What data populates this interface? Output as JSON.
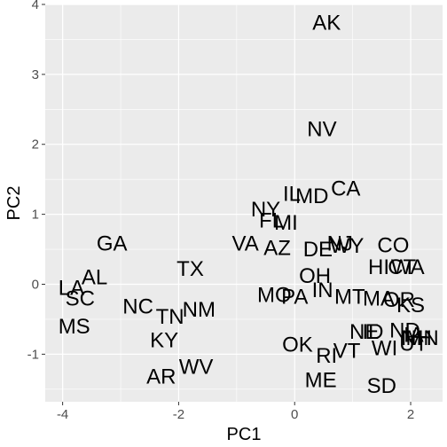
{
  "chart_data": {
    "type": "scatter",
    "title": "",
    "xlabel": "PC1",
    "ylabel": "PC2",
    "xlim": [
      -4.3,
      2.55
    ],
    "ylim": [
      -1.68,
      4.0
    ],
    "x_ticks": [
      -4,
      -2,
      0,
      2
    ],
    "x_tick_labels": [
      "-4",
      "-2",
      "0",
      "2"
    ],
    "y_ticks": [
      -1,
      0,
      1,
      2,
      3,
      4
    ],
    "y_tick_labels": [
      "-1",
      "0",
      "1",
      "2",
      "3",
      "4"
    ],
    "grid": true,
    "legend": "none",
    "colors": {
      "panel": "#ebebeb",
      "grid": "#ffffff",
      "text": "#000000",
      "tick_text": "#4d4d4d"
    },
    "points": [
      {
        "label": "AK",
        "x": 0.55,
        "y": 3.74
      },
      {
        "label": "NV",
        "x": 0.47,
        "y": 2.22
      },
      {
        "label": "CA",
        "x": 0.88,
        "y": 1.37
      },
      {
        "label": "IL",
        "x": -0.05,
        "y": 1.29
      },
      {
        "label": "MD",
        "x": 0.3,
        "y": 1.26
      },
      {
        "label": "NY",
        "x": -0.5,
        "y": 1.07
      },
      {
        "label": "FL",
        "x": -0.4,
        "y": 0.91
      },
      {
        "label": "MI",
        "x": -0.15,
        "y": 0.88
      },
      {
        "label": "GA",
        "x": -3.15,
        "y": 0.58
      },
      {
        "label": "VA",
        "x": -0.85,
        "y": 0.58
      },
      {
        "label": "NJ",
        "x": 0.78,
        "y": 0.58
      },
      {
        "label": "CO",
        "x": 1.7,
        "y": 0.56
      },
      {
        "label": "AZ",
        "x": -0.3,
        "y": 0.52
      },
      {
        "label": "DE",
        "x": 0.4,
        "y": 0.5
      },
      {
        "label": "WY",
        "x": 0.9,
        "y": 0.55
      },
      {
        "label": "AL",
        "x": -3.45,
        "y": 0.1
      },
      {
        "label": "TX",
        "x": -1.8,
        "y": 0.22
      },
      {
        "label": "HI",
        "x": 1.45,
        "y": 0.25
      },
      {
        "label": "CT",
        "x": 1.85,
        "y": 0.25
      },
      {
        "label": "WA",
        "x": 1.95,
        "y": 0.25
      },
      {
        "label": "OH",
        "x": 0.35,
        "y": 0.12
      },
      {
        "label": "LA",
        "x": -3.85,
        "y": -0.05
      },
      {
        "label": "SC",
        "x": -3.7,
        "y": -0.2
      },
      {
        "label": "MO",
        "x": -0.35,
        "y": -0.15
      },
      {
        "label": "PA",
        "x": 0.0,
        "y": -0.18
      },
      {
        "label": "IN",
        "x": 0.48,
        "y": -0.08
      },
      {
        "label": "MT",
        "x": 0.95,
        "y": -0.18
      },
      {
        "label": "MA",
        "x": 1.45,
        "y": -0.2
      },
      {
        "label": "OR",
        "x": 1.8,
        "y": -0.22
      },
      {
        "label": "KS",
        "x": 2.0,
        "y": -0.3
      },
      {
        "label": "NC",
        "x": -2.7,
        "y": -0.32
      },
      {
        "label": "NM",
        "x": -1.65,
        "y": -0.36
      },
      {
        "label": "TN",
        "x": -2.15,
        "y": -0.46
      },
      {
        "label": "MS",
        "x": -3.8,
        "y": -0.6
      },
      {
        "label": "NE",
        "x": 1.2,
        "y": -0.68
      },
      {
        "label": "ID",
        "x": 1.35,
        "y": -0.68
      },
      {
        "label": "ND",
        "x": 1.9,
        "y": -0.66
      },
      {
        "label": "IA",
        "x": 2.05,
        "y": -0.72
      },
      {
        "label": "MN",
        "x": 2.2,
        "y": -0.77
      },
      {
        "label": "NH",
        "x": 2.1,
        "y": -0.77
      },
      {
        "label": "UT",
        "x": 2.05,
        "y": -0.85
      },
      {
        "label": "KY",
        "x": -2.25,
        "y": -0.8
      },
      {
        "label": "OK",
        "x": 0.05,
        "y": -0.86
      },
      {
        "label": "WI",
        "x": 1.55,
        "y": -0.91
      },
      {
        "label": "VT",
        "x": 0.9,
        "y": -0.95
      },
      {
        "label": "RI",
        "x": 0.55,
        "y": -1.02
      },
      {
        "label": "WV",
        "x": -1.7,
        "y": -1.18
      },
      {
        "label": "AR",
        "x": -2.3,
        "y": -1.32
      },
      {
        "label": "ME",
        "x": 0.45,
        "y": -1.37
      },
      {
        "label": "SD",
        "x": 1.5,
        "y": -1.45
      }
    ]
  }
}
